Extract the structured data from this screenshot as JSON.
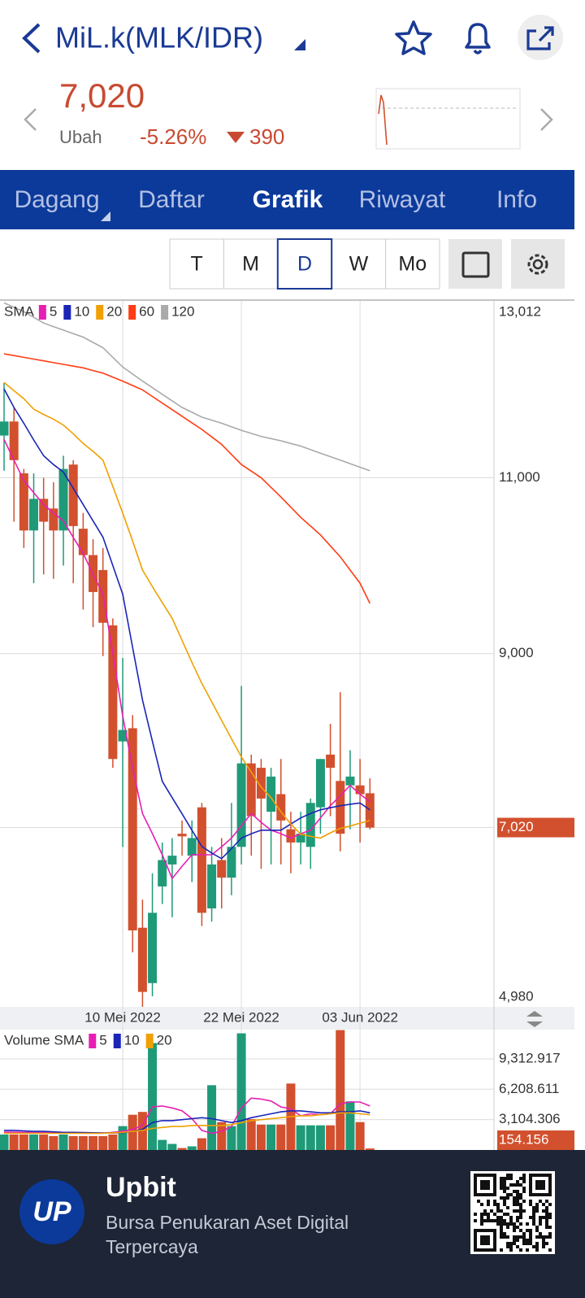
{
  "header": {
    "title": "MiL.k(MLK/IDR)",
    "price": "7,020",
    "change_label": "Ubah",
    "change_rate": "-5.26%",
    "change_amount": "390"
  },
  "tabs": [
    "Dagang",
    "Daftar",
    "Grafik",
    "Riwayat",
    "Info"
  ],
  "intervals": [
    "T",
    "M",
    "D",
    "W",
    "Mo"
  ],
  "footer": {
    "logo": "UP",
    "brand": "Upbit",
    "tagline": "Bursa Penukaran Aset Digital Terpercaya"
  },
  "chart_data": [
    {
      "type": "candlestick",
      "legend_title": "SMA",
      "categories": [
        null,
        null,
        null,
        null,
        null,
        null,
        null,
        null,
        null,
        null,
        null,
        null,
        "10 Mei 2022",
        null,
        null,
        null,
        null,
        null,
        null,
        null,
        null,
        null,
        null,
        null,
        "22 Mei 2022",
        null,
        null,
        null,
        null,
        null,
        null,
        null,
        null,
        null,
        null,
        null,
        "03 Jun 2022",
        null
      ],
      "open": [
        11480,
        11640,
        11050,
        10400,
        10760,
        10650,
        10400,
        11150,
        10420,
        10120,
        9950,
        9320,
        8000,
        8150,
        5880,
        5250,
        6350,
        6600,
        6950,
        6700,
        7250,
        6100,
        6650,
        6450,
        6800,
        7750,
        7700,
        7200,
        7400,
        7000,
        6850,
        6800,
        7250,
        7850,
        7550,
        7500,
        7500,
        7410
      ],
      "high": [
        12080,
        11800,
        11100,
        11050,
        11000,
        10950,
        11250,
        11200,
        10600,
        10300,
        10200,
        9400,
        8950,
        8300,
        6200,
        6500,
        6850,
        6900,
        7100,
        7100,
        7300,
        6800,
        6900,
        7300,
        8630,
        7850,
        7800,
        7700,
        7800,
        7200,
        7200,
        7350,
        7800,
        8200,
        8560,
        7900,
        7800,
        7580
      ],
      "low": [
        11080,
        10500,
        10200,
        9800,
        9900,
        9850,
        10000,
        9800,
        9500,
        9300,
        8970,
        7700,
        6800,
        5600,
        4980,
        5100,
        6150,
        6000,
        6700,
        6400,
        5900,
        5950,
        6100,
        6250,
        6600,
        6700,
        6550,
        6600,
        6600,
        6500,
        6600,
        6550,
        6950,
        7150,
        6750,
        7000,
        6850,
        7000
      ],
      "close": [
        11640,
        11200,
        10400,
        10760,
        10500,
        10400,
        11100,
        10450,
        10120,
        9700,
        9350,
        7800,
        8130,
        5850,
        5150,
        6050,
        6650,
        6700,
        6920,
        6900,
        6050,
        6600,
        6450,
        6800,
        7750,
        7150,
        7350,
        7600,
        7100,
        6850,
        6950,
        7300,
        7800,
        7700,
        6950,
        7600,
        7400,
        7020
      ],
      "up_color": "#1f9a78",
      "down_color": "#d2502e",
      "series": [
        {
          "name": "5",
          "color": "#e81eb4",
          "values": [
            11435,
            11200,
            10970,
            10830,
            10695,
            10600,
            10510,
            10320,
            10140,
            9900,
            9676,
            9000,
            8290,
            7700,
            7180,
            6950,
            6710,
            6440,
            6580,
            6710,
            6710,
            6710,
            6800,
            6900,
            7040,
            7180,
            7080,
            6990,
            6950,
            6900,
            6950,
            6990,
            7130,
            7270,
            7380,
            7500,
            7400,
            7315
          ]
        },
        {
          "name": "10",
          "color": "#1a25b8",
          "values": [
            12010,
            11800,
            11620,
            11430,
            11250,
            11150,
            11065,
            10880,
            10695,
            10510,
            10324,
            10000,
            9676,
            9070,
            8470,
            8000,
            7546,
            7360,
            7176,
            6990,
            6805,
            6730,
            6666,
            6780,
            6900,
            6950,
            6990,
            6990,
            6990,
            7060,
            7130,
            7180,
            7222,
            7245,
            7268,
            7285,
            7300,
            7220
          ]
        },
        {
          "name": "20",
          "color": "#f0a000",
          "values": [
            12084,
            11990,
            11900,
            11780,
            11720,
            11667,
            11600,
            11500,
            11390,
            11300,
            11200,
            10900,
            10600,
            10280,
            9950,
            9760,
            9580,
            9400,
            9150,
            8900,
            8660,
            8450,
            8240,
            8030,
            7824,
            7650,
            7480,
            7360,
            7200,
            7060,
            6944,
            6920,
            6900,
            6960,
            7010,
            7037,
            7070,
            7100
          ]
        },
        {
          "name": "60",
          "color": "#ff3d14",
          "values": [
            12410,
            12390,
            12370,
            12350,
            12330,
            12310,
            12290,
            12270,
            12250,
            12220,
            12190,
            12145,
            12100,
            12050,
            12000,
            11925,
            11850,
            11775,
            11700,
            11625,
            11550,
            11465,
            11380,
            11265,
            11150,
            11075,
            11000,
            10890,
            10780,
            10665,
            10550,
            10450,
            10350,
            10225,
            10100,
            9950,
            9800,
            9570
          ]
        },
        {
          "name": "120",
          "color": "#aaaaaa",
          "values": [
            12990,
            12940,
            12890,
            12825,
            12760,
            12720,
            12680,
            12640,
            12600,
            12540,
            12480,
            12370,
            12260,
            12180,
            12100,
            12025,
            11950,
            11875,
            11800,
            11745,
            11690,
            11655,
            11620,
            11580,
            11540,
            11505,
            11470,
            11445,
            11420,
            11390,
            11360,
            11320,
            11280,
            11240,
            11200,
            11160,
            11120,
            11080
          ]
        }
      ],
      "ylim": [
        4980,
        13012
      ],
      "yticks": [
        {
          "value": 4980,
          "label": "4,980"
        },
        {
          "value": 9000,
          "label": "9,000"
        },
        {
          "value": 11000,
          "label": "11,000"
        },
        {
          "value": 13012,
          "label": "13,012"
        }
      ],
      "last_value": {
        "value": 7020,
        "label": "7,020"
      },
      "grid": true
    },
    {
      "type": "bar",
      "legend_title": "Volume SMA",
      "values": [
        1580,
        1580,
        1580,
        1580,
        1580,
        1420,
        1580,
        1420,
        1420,
        1420,
        1420,
        1580,
        2440,
        3600,
        3890,
        10930,
        1030,
        620,
        200,
        370,
        1200,
        6620,
        2850,
        2440,
        11920,
        3150,
        2600,
        2600,
        2600,
        6790,
        2520,
        2520,
        2520,
        2520,
        12250,
        4970,
        2850,
        154.156
      ],
      "series": [
        {
          "name": "5",
          "color": "#e81eb4",
          "values": [
            1820,
            1820,
            1800,
            1780,
            1780,
            1760,
            1760,
            1740,
            1720,
            1720,
            1720,
            1800,
            1900,
            2100,
            2500,
            4400,
            4500,
            4300,
            4000,
            3200,
            2000,
            1700,
            1900,
            2400,
            4300,
            5300,
            5200,
            5000,
            4400,
            4200,
            3500,
            3700,
            3600,
            3700,
            4700,
            4900,
            4900,
            4500
          ]
        },
        {
          "name": "10",
          "color": "#1a25b8",
          "values": [
            2000,
            2000,
            1950,
            1900,
            1900,
            1850,
            1800,
            1800,
            1780,
            1760,
            1740,
            1740,
            1760,
            1900,
            2100,
            2800,
            3000,
            3000,
            3100,
            3200,
            3300,
            3200,
            3000,
            2800,
            3000,
            3300,
            3500,
            3700,
            3900,
            4000,
            4000,
            3900,
            3800,
            3800,
            3900,
            3900,
            4000,
            3800
          ]
        },
        {
          "name": "20",
          "color": "#f0a000",
          "values": [
            1700,
            1700,
            1700,
            1700,
            1700,
            1700,
            1700,
            1700,
            1700,
            1700,
            1700,
            1750,
            1800,
            1900,
            2000,
            2200,
            2300,
            2400,
            2400,
            2500,
            2500,
            2500,
            2500,
            2600,
            2800,
            3000,
            3100,
            3200,
            3300,
            3400,
            3500,
            3500,
            3600,
            3700,
            3800,
            3800,
            3700,
            3600
          ]
        }
      ],
      "ylim": [
        0,
        12300
      ],
      "yticks": [
        {
          "value": 3104.306,
          "label": "3,104.306"
        },
        {
          "value": 6208.611,
          "label": "6,208.611"
        },
        {
          "value": 9312.917,
          "label": "9,312.917"
        }
      ],
      "grid": true
    }
  ]
}
